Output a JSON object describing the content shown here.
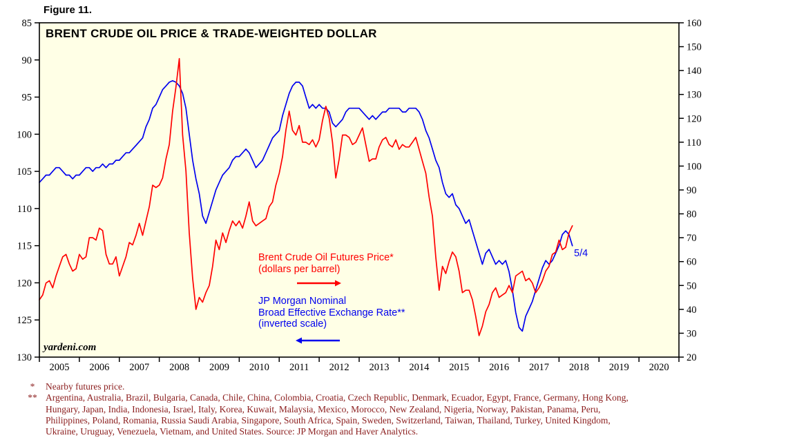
{
  "figure_label": "Figure 11.",
  "chart_data": {
    "type": "line",
    "title": "BRENT CRUDE OIL PRICE & TRADE-WEIGHTED DOLLAR",
    "plot_bg": "#ffffe6",
    "frame_color": "#000000",
    "legend_position": "annotations inside plot",
    "grid": false,
    "x_axis": {
      "range": [
        2005,
        2021
      ],
      "year_labels": [
        "2005",
        "2006",
        "2007",
        "2008",
        "2009",
        "2010",
        "2011",
        "2012",
        "2013",
        "2014",
        "2015",
        "2016",
        "2017",
        "2018",
        "2019",
        "2020"
      ]
    },
    "left_axis": {
      "range": [
        85,
        130
      ],
      "ticks": [
        85,
        90,
        95,
        100,
        105,
        110,
        115,
        120,
        125,
        130
      ],
      "orientation": "inverted (values increase downward)"
    },
    "right_axis": {
      "range": [
        20,
        160
      ],
      "ticks": [
        160,
        150,
        140,
        130,
        120,
        110,
        100,
        90,
        80,
        70,
        60,
        50,
        40,
        30,
        20
      ]
    },
    "points_per_year": 12,
    "series": [
      {
        "name": "Brent Crude Oil Futures Price (dollars per barrel)",
        "axis": "right",
        "color": "#ff0000",
        "x_start": 2005.0,
        "values": [
          44,
          46,
          51,
          52,
          49,
          54,
          58,
          62,
          63,
          59,
          56,
          57,
          63,
          61,
          62,
          70,
          70,
          69,
          74,
          73,
          63,
          59,
          59,
          62,
          54,
          58,
          62,
          68,
          67,
          71,
          76,
          71,
          77,
          83,
          92,
          91,
          92,
          95,
          103,
          109,
          123,
          133,
          145,
          113,
          98,
          72,
          53,
          40,
          45,
          43,
          47,
          50,
          58,
          69,
          65,
          72,
          68,
          73,
          77,
          75,
          77,
          74,
          79,
          85,
          77,
          75,
          76,
          77,
          78,
          83,
          85,
          92,
          97,
          104,
          115,
          123,
          115,
          113,
          117,
          110,
          110,
          109,
          111,
          108,
          111,
          119,
          125,
          120,
          110,
          95,
          103,
          113,
          113,
          112,
          109,
          110,
          113,
          116,
          109,
          102,
          103,
          103,
          108,
          111,
          112,
          109,
          108,
          111,
          107,
          109,
          108,
          108,
          110,
          112,
          107,
          102,
          97,
          87,
          79,
          62,
          48,
          58,
          55,
          60,
          64,
          62,
          56,
          47,
          48,
          48,
          44,
          37,
          29,
          33,
          39,
          42,
          47,
          49,
          45,
          46,
          47,
          50,
          47,
          54,
          55,
          56,
          52,
          53,
          51,
          47,
          49,
          52,
          56,
          58,
          63,
          64,
          69,
          65,
          66,
          72,
          75
        ]
      },
      {
        "name": "JP Morgan Nominal Broad Effective Exchange Rate (inverted scale)",
        "axis": "left",
        "color": "#0000ee",
        "x_start": 2005.0,
        "values": [
          106.5,
          106,
          105.5,
          105.5,
          105,
          104.5,
          104.5,
          105,
          105.5,
          105.5,
          106,
          105.5,
          105.5,
          105,
          104.5,
          104.5,
          105,
          104.5,
          104.5,
          104,
          104.5,
          104,
          104,
          103.5,
          103.5,
          103,
          102.5,
          102.5,
          102,
          101.5,
          101,
          100.5,
          99,
          98,
          96.5,
          96,
          95,
          94,
          93.5,
          93,
          92.8,
          93,
          93.5,
          94.5,
          96.5,
          100,
          103.5,
          106,
          108,
          111,
          112,
          110.5,
          109,
          107.5,
          106.5,
          105.5,
          105,
          104.5,
          103.5,
          103,
          103,
          102.5,
          102,
          102.5,
          103.5,
          104.5,
          104,
          103.5,
          102.5,
          101.5,
          100.5,
          100,
          99.5,
          97.5,
          96,
          94.5,
          93.5,
          93,
          93,
          93.5,
          95,
          96.5,
          96,
          96.5,
          96,
          96.5,
          96.5,
          97,
          98.5,
          99,
          98.5,
          98,
          97,
          96.5,
          96.5,
          96.5,
          96.5,
          97,
          97.5,
          98,
          97.5,
          98,
          97.5,
          97,
          97,
          96.5,
          96.5,
          96.5,
          96.5,
          97,
          97,
          96.5,
          96.5,
          96.5,
          97,
          98,
          99.5,
          100.5,
          102,
          103.5,
          104.5,
          106.5,
          108,
          108.5,
          108,
          109.5,
          110,
          111,
          112,
          111.5,
          113,
          114.5,
          116,
          117.5,
          116,
          115.5,
          116.5,
          117.5,
          117,
          117.5,
          117,
          118.5,
          121,
          124,
          126,
          126.5,
          124.5,
          123.5,
          122.5,
          121,
          119.5,
          118,
          117,
          117.5,
          117,
          116,
          115,
          113.5,
          113,
          113.5,
          115
        ]
      }
    ],
    "annotations": {
      "brent_label": "Brent Crude Oil Futures Price*\n(dollars per barrel)",
      "dollar_label": "JP Morgan Nominal\nBroad Effective Exchange Rate**\n(inverted scale)",
      "last_date_label": "5/4",
      "watermark": "yardeni.com"
    }
  },
  "footnotes": [
    {
      "marker": "*",
      "text": "Nearby futures price."
    },
    {
      "marker": "**",
      "text": "Argentina, Australia, Brazil, Bulgaria, Canada, Chile, China, Colombia, Croatia, Czech Republic, Denmark, Ecuador, Egypt, France, Germany, Hong Kong,\nHungary, Japan, India, Indonesia, Israel, Italy, Korea, Kuwait, Malaysia, Mexico, Morocco, New Zealand, Nigeria, Norway, Pakistan, Panama, Peru,\nPhilippines, Poland, Romania, Russia Saudi Arabia, Singapore, South Africa, Spain, Sweden, Switzerland, Taiwan, Thailand, Turkey, United Kingdom,\nUkraine, Uruguay, Venezuela, Vietnam, and United States. Source: JP Morgan and Haver Analytics."
    }
  ]
}
